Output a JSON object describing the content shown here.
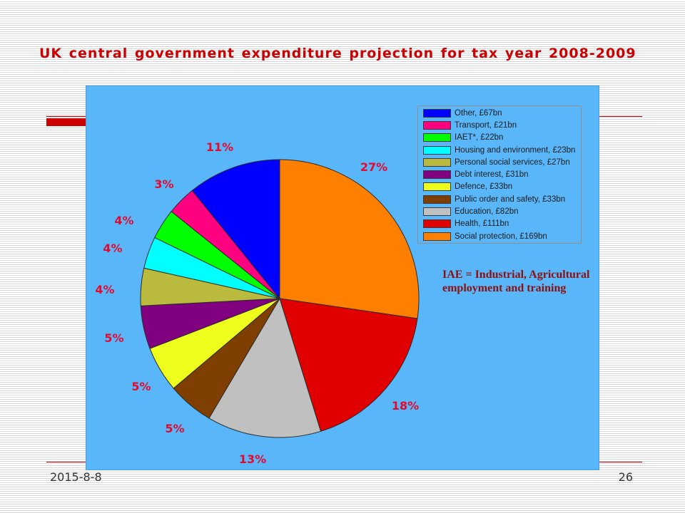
{
  "slide": {
    "title": "UK central government expenditure projection for tax year 2008-2009",
    "date": "2015-8-8",
    "page_number": "26"
  },
  "colors": {
    "title": "#CC0000",
    "accent": "#CC0000",
    "chart_background": "#58B6F9",
    "data_labels": "#E40A2D",
    "annotation": "#8B1010"
  },
  "chart_data": {
    "type": "pie",
    "categories": [
      "Social protection, £169bn",
      "Health, £111bn",
      "Education, £82bn",
      "Public order and safety, £33bn",
      "Defence, £33bn",
      "Debt interest, £31bn",
      "Personal social services, £27bn",
      "Housing and environment, £23bn",
      "IAET*, £22bn",
      "Transport, £21bn",
      "Other, £67bn"
    ],
    "values": [
      169,
      111,
      82,
      33,
      33,
      31,
      27,
      23,
      22,
      21,
      67
    ],
    "data_labels": [
      "27%",
      "18%",
      "13%",
      "5%",
      "5%",
      "5%",
      "4%",
      "4%",
      "4%",
      "3%",
      "11%"
    ],
    "colors": [
      "#FF8000",
      "#E00000",
      "#C0C0C0",
      "#7F3F00",
      "#EEFF1E",
      "#800080",
      "#BABA3E",
      "#00FFFF",
      "#00FF00",
      "#FF0080",
      "#0000FF"
    ],
    "legend": {
      "placement": "top-right"
    },
    "annotation": [
      "IAE = Industrial, Agricultural",
      "employment and training"
    ]
  }
}
